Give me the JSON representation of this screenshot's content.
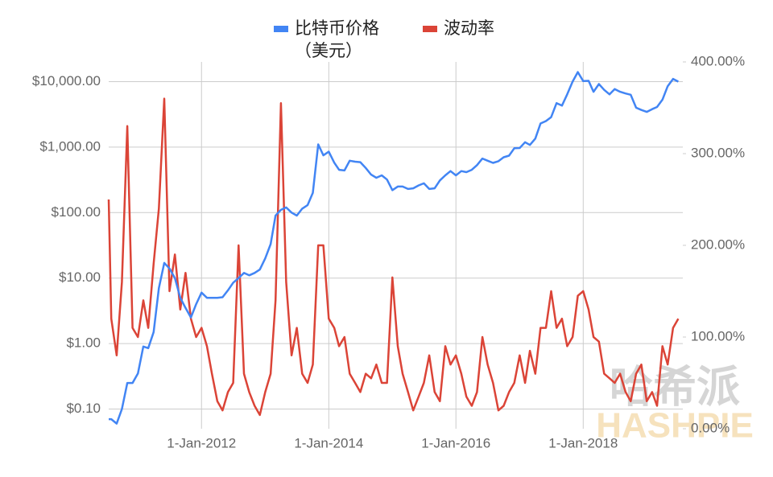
{
  "chart_data": {
    "type": "line",
    "legend_position": "top",
    "log_scale_y": true,
    "grid": true,
    "watermark": [
      "哈希派",
      "HASHPIE"
    ],
    "x": [
      "2010-07-17",
      "2010-08-01",
      "2010-09-01",
      "2010-10-01",
      "2010-11-01",
      "2010-12-01",
      "2011-01-01",
      "2011-02-01",
      "2011-03-01",
      "2011-04-01",
      "2011-05-01",
      "2011-06-01",
      "2011-07-01",
      "2011-08-01",
      "2011-09-01",
      "2011-10-01",
      "2011-11-01",
      "2011-12-01",
      "2012-01-01",
      "2012-02-01",
      "2012-03-01",
      "2012-04-01",
      "2012-05-01",
      "2012-06-01",
      "2012-07-01",
      "2012-08-01",
      "2012-09-01",
      "2012-10-01",
      "2012-11-01",
      "2012-12-01",
      "2013-01-01",
      "2013-02-01",
      "2013-03-01",
      "2013-04-01",
      "2013-05-01",
      "2013-06-01",
      "2013-07-01",
      "2013-08-01",
      "2013-09-01",
      "2013-10-01",
      "2013-11-01",
      "2013-12-01",
      "2014-01-01",
      "2014-02-01",
      "2014-03-01",
      "2014-04-01",
      "2014-05-01",
      "2014-06-01",
      "2014-07-01",
      "2014-08-01",
      "2014-09-01",
      "2014-10-01",
      "2014-11-01",
      "2014-12-01",
      "2015-01-01",
      "2015-02-01",
      "2015-03-01",
      "2015-04-01",
      "2015-05-01",
      "2015-06-01",
      "2015-07-01",
      "2015-08-01",
      "2015-09-01",
      "2015-10-01",
      "2015-11-01",
      "2015-12-01",
      "2016-01-01",
      "2016-02-01",
      "2016-03-01",
      "2016-04-01",
      "2016-05-01",
      "2016-06-01",
      "2016-07-01",
      "2016-08-01",
      "2016-09-01",
      "2016-10-01",
      "2016-11-01",
      "2016-12-01",
      "2017-01-01",
      "2017-02-01",
      "2017-03-01",
      "2017-04-01",
      "2017-05-01",
      "2017-06-01",
      "2017-07-01",
      "2017-08-01",
      "2017-09-01",
      "2017-10-01",
      "2017-11-01",
      "2017-12-01",
      "2018-01-01",
      "2018-02-01",
      "2018-03-01",
      "2018-04-01",
      "2018-05-01",
      "2018-06-01",
      "2018-07-01",
      "2018-08-01",
      "2018-09-01",
      "2018-10-01",
      "2018-11-01",
      "2018-12-01",
      "2019-01-01",
      "2019-02-01",
      "2019-03-01",
      "2019-04-01",
      "2019-05-01",
      "2019-06-01",
      "2019-07-01"
    ],
    "xlim": [
      "2010-07-17",
      "2019-07-27"
    ],
    "xticks": [
      {
        "value": "2012-01-01",
        "label": "1-Jan-2012"
      },
      {
        "value": "2014-01-01",
        "label": "1-Jan-2014"
      },
      {
        "value": "2016-01-01",
        "label": "1-Jan-2016"
      },
      {
        "value": "2018-01-01",
        "label": "1-Jan-2018"
      }
    ],
    "ylim": [
      0.05,
      20000
    ],
    "yticks": [
      {
        "value": 0.1,
        "label": "$0.10"
      },
      {
        "value": 1,
        "label": "$1.00"
      },
      {
        "value": 10,
        "label": "$10.00"
      },
      {
        "value": 100,
        "label": "$100.00"
      },
      {
        "value": 1000,
        "label": "$1,000.00"
      },
      {
        "value": 10000,
        "label": "$10,000.00"
      }
    ],
    "y2lim": [
      0,
      400
    ],
    "y2ticks": [
      {
        "value": 0,
        "label": "0.00%"
      },
      {
        "value": 100,
        "label": "100.00%"
      },
      {
        "value": 200,
        "label": "200.00%"
      },
      {
        "value": 300,
        "label": "300.00%"
      },
      {
        "value": 400,
        "label": "400.00%"
      }
    ],
    "series": [
      {
        "name": "比特币价格（美元）",
        "color": "#4285f4",
        "values": [
          0.07,
          0.07,
          0.06,
          0.1,
          0.25,
          0.25,
          0.35,
          0.9,
          0.85,
          1.5,
          7,
          17,
          14,
          10,
          5,
          3.5,
          2.5,
          4,
          6,
          5,
          5,
          5,
          5.1,
          6.5,
          8.5,
          10,
          12,
          11,
          12,
          13.5,
          20,
          33,
          90,
          110,
          120,
          100,
          90,
          115,
          130,
          200,
          1100,
          750,
          850,
          580,
          450,
          440,
          620,
          600,
          590,
          480,
          380,
          340,
          370,
          320,
          220,
          250,
          250,
          230,
          235,
          260,
          280,
          230,
          235,
          310,
          370,
          430,
          370,
          430,
          415,
          450,
          530,
          670,
          620,
          575,
          610,
          700,
          740,
          960,
          970,
          1190,
          1080,
          1350,
          2300,
          2500,
          2870,
          4700,
          4300,
          6400,
          10000,
          14000,
          10200,
          10300,
          7000,
          9200,
          7500,
          6400,
          7700,
          7000,
          6600,
          6300,
          4000,
          3700,
          3450,
          3800,
          4100,
          5300,
          8500,
          11000,
          10000
        ]
      },
      {
        "name": "波动率",
        "color": "#db4437",
        "axis": "y2",
        "values": [
          250,
          120,
          80,
          160,
          330,
          110,
          100,
          140,
          110,
          180,
          240,
          360,
          150,
          190,
          130,
          170,
          120,
          100,
          110,
          90,
          60,
          30,
          20,
          40,
          50,
          200,
          60,
          40,
          25,
          15,
          40,
          60,
          140,
          355,
          160,
          80,
          110,
          60,
          50,
          70,
          200,
          200,
          120,
          110,
          90,
          100,
          60,
          50,
          40,
          60,
          55,
          70,
          50,
          50,
          165,
          90,
          60,
          40,
          20,
          35,
          50,
          80,
          40,
          30,
          90,
          70,
          80,
          60,
          35,
          25,
          40,
          100,
          70,
          50,
          20,
          25,
          40,
          50,
          80,
          50,
          85,
          60,
          110,
          110,
          150,
          110,
          120,
          90,
          100,
          145,
          150,
          130,
          100,
          95,
          60,
          55,
          50,
          60,
          40,
          30,
          60,
          70,
          30,
          40,
          25,
          90,
          70,
          110,
          120
        ]
      }
    ]
  }
}
